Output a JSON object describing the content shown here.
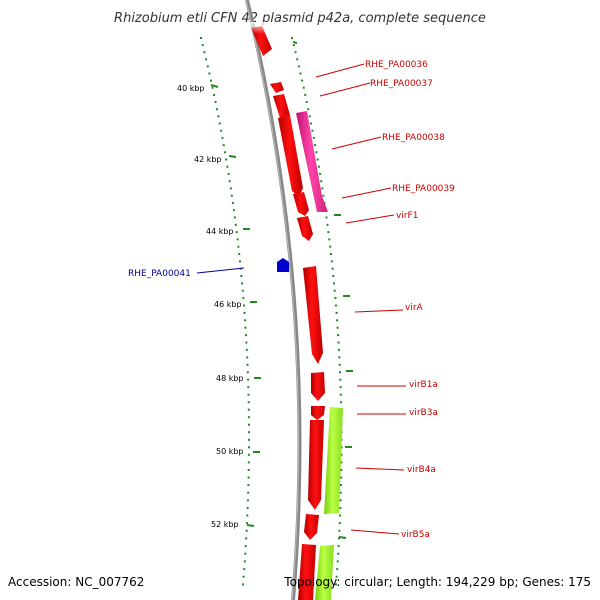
{
  "title": "Rhizobium etli CFN 42 plasmid p42a, complete sequence",
  "footer": {
    "accession": "Accession: NC_007762",
    "summary": "Topology: circular; Length: 194,229 bp; Genes: 175"
  },
  "colors": {
    "forward_cds": "#ff0000",
    "reverse_cds_pink": "#ff3399",
    "reverse_cds_green": "#99ee22",
    "reverse_label": "#000099",
    "forward_label": "#cc0000",
    "backbone": "#888888",
    "tick": "#228822"
  },
  "ticks": [
    {
      "label": "40 kbp"
    },
    {
      "label": "42 kbp"
    },
    {
      "label": "44 kbp"
    },
    {
      "label": "46 kbp"
    },
    {
      "label": "48 kbp"
    },
    {
      "label": "50 kbp"
    },
    {
      "label": "52 kbp"
    }
  ],
  "gene_labels": [
    {
      "label": "RHE_PA00036"
    },
    {
      "label": "RHE_PA00037"
    },
    {
      "label": "RHE_PA00038"
    },
    {
      "label": "RHE_PA00039"
    },
    {
      "label": "virF1"
    },
    {
      "label": "RHE_PA00041"
    },
    {
      "label": "virA"
    },
    {
      "label": "virB1a"
    },
    {
      "label": "virB3a"
    },
    {
      "label": "virB4a"
    },
    {
      "label": "virB5a"
    }
  ]
}
